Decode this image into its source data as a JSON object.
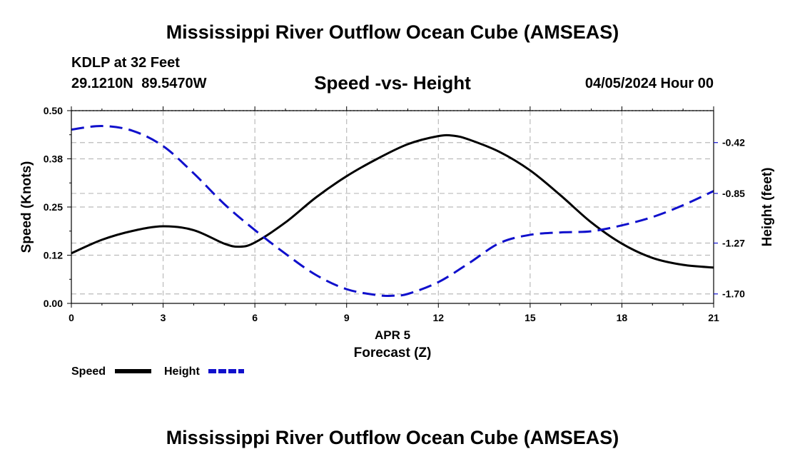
{
  "header": {
    "title": "Mississippi River Outflow Ocean Cube (AMSEAS)",
    "station": "KDLP at 32 Feet",
    "coordinates": "29.1210N  89.5470W",
    "subtitle": "Speed -vs- Height",
    "datetime": "04/05/2024 Hour 00"
  },
  "footer": {
    "title": "Mississippi River Outflow Ocean Cube (AMSEAS)"
  },
  "colors": {
    "speed": "#000000",
    "height": "#1010cc",
    "grid": "#bbbbbb"
  },
  "chart_data": {
    "type": "line",
    "title": "Speed -vs- Height",
    "xlabel": "Forecast (Z)",
    "xlabel_date": "APR 5",
    "ylabel_left": "Speed (Knots)",
    "ylabel_right": "Height (feet)",
    "xlim": [
      0,
      21
    ],
    "ylim_left": [
      0,
      0.5
    ],
    "ylim_right": [
      -1.78,
      -0.15
    ],
    "x_ticks": [
      0,
      3,
      6,
      9,
      12,
      15,
      18,
      21
    ],
    "x_tick_labels": [
      "0",
      "3",
      "6",
      "9",
      "12",
      "15",
      "18",
      "21"
    ],
    "y_left_ticks": [
      0,
      0.125,
      0.25,
      0.375,
      0.5
    ],
    "y_left_tick_labels": [
      "0.00",
      "0.12",
      "0.25",
      "0.38",
      "0.50"
    ],
    "y_right_ticks": [
      -1.7,
      -1.27,
      -0.85,
      -0.42
    ],
    "y_right_tick_labels": [
      "-1.70",
      "-1.27",
      "-0.85",
      "-0.42"
    ],
    "grid": true,
    "legend_position": "bottom-left",
    "series": [
      {
        "name": "Speed",
        "axis": "left",
        "style": "solid",
        "x": [
          0,
          1,
          2,
          3,
          4,
          5,
          5.5,
          6,
          7,
          8,
          9,
          10,
          11,
          12,
          12.5,
          13,
          14,
          15,
          16,
          17,
          18,
          19,
          20,
          21
        ],
        "values": [
          0.13,
          0.165,
          0.188,
          0.2,
          0.19,
          0.155,
          0.147,
          0.158,
          0.21,
          0.275,
          0.33,
          0.375,
          0.413,
          0.434,
          0.435,
          0.425,
          0.393,
          0.345,
          0.28,
          0.21,
          0.155,
          0.118,
          0.1,
          0.093
        ]
      },
      {
        "name": "Height",
        "axis": "right",
        "style": "dashed",
        "x": [
          0,
          1,
          2,
          3,
          4,
          5,
          6,
          7,
          8,
          9,
          10,
          10.5,
          11,
          12,
          13,
          14,
          15,
          16,
          17,
          18,
          19,
          20,
          21
        ],
        "values": [
          -0.31,
          -0.28,
          -0.32,
          -0.45,
          -0.68,
          -0.94,
          -1.16,
          -1.36,
          -1.54,
          -1.66,
          -1.71,
          -1.715,
          -1.7,
          -1.6,
          -1.44,
          -1.27,
          -1.2,
          -1.18,
          -1.17,
          -1.12,
          -1.05,
          -0.95,
          -0.83
        ]
      }
    ]
  }
}
